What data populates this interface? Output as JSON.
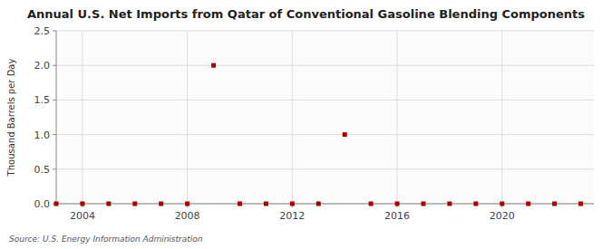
{
  "chart_data": {
    "type": "scatter",
    "title": "Annual U.S. Net Imports from Qatar of Conventional Gasoline Blending Components",
    "y_label": "Thousand Barrels per Day",
    "annotations": [
      "Source: U.S. Energy Information Administration"
    ],
    "x": [
      2003,
      2004,
      2005,
      2006,
      2007,
      2008,
      2009,
      2010,
      2011,
      2012,
      2013,
      2014,
      2015,
      2016,
      2017,
      2018,
      2019,
      2020,
      2021,
      2022,
      2023
    ],
    "values": [
      0,
      0,
      0,
      0,
      0,
      0,
      2.0,
      0,
      0,
      0,
      0,
      1.0,
      0,
      0,
      0,
      0,
      0,
      0,
      0,
      0,
      0
    ],
    "color": "#aa0000",
    "marker": "square",
    "xlim": [
      2003.0,
      2023.5
    ],
    "ylim": [
      0,
      2.5
    ],
    "xticks": [
      2004,
      2008,
      2012,
      2016,
      2020
    ],
    "yticks": [
      {
        "value": 0.0,
        "label": "0.0"
      },
      0.5,
      {
        "value": 1.0,
        "label": "1.0"
      },
      1.5,
      {
        "value": 2.0,
        "label": "2.0"
      },
      2.5
    ],
    "grid": true
  }
}
